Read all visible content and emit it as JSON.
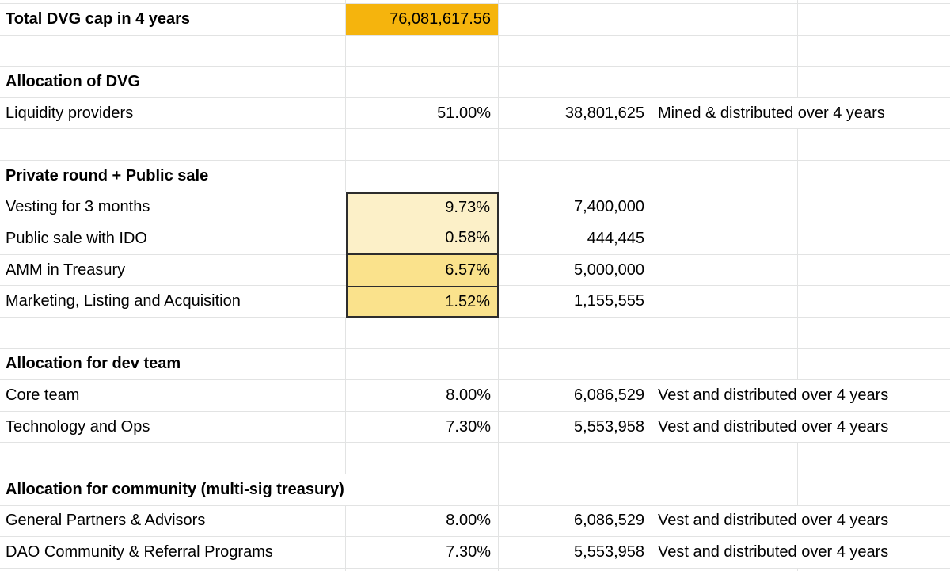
{
  "colors": {
    "highlight_orange": "#F5B40D",
    "highlight_cream": "#FCF0C8",
    "highlight_yellow": "#FAE28C",
    "gridline": "#E2E3E3",
    "box_border": "#2D2D2D",
    "text": "#000000",
    "sheet_bg": "#FFFFFF"
  },
  "sheet": {
    "rows": [
      {
        "label": "Total DVG cap in 4 years",
        "value": "76,081,617.56",
        "highlight": "orange"
      },
      {},
      {
        "label": "Allocation of DVG",
        "header": true
      },
      {
        "label": "Liquidity providers",
        "percent": "51.00%",
        "amount": "38,801,625",
        "note": "Mined & distributed over 4 years"
      },
      {},
      {
        "label": "Private round + Public sale",
        "header": true
      },
      {
        "label": "Vesting for 3 months",
        "percent": "9.73%",
        "amount": "7,400,000",
        "highlight": "cream"
      },
      {
        "label": "Public sale with IDO",
        "percent": "0.58%",
        "amount": "444,445",
        "highlight": "cream"
      },
      {
        "label": "AMM in Treasury",
        "percent": "6.57%",
        "amount": "5,000,000",
        "highlight": "yellow"
      },
      {
        "label": "Marketing, Listing and Acquisition",
        "percent": "1.52%",
        "amount": "1,155,555",
        "highlight": "yellow"
      },
      {},
      {
        "label": "Allocation for dev team",
        "header": true
      },
      {
        "label": "Core team",
        "percent": "8.00%",
        "amount": "6,086,529",
        "note": "Vest and distributed over 4 years"
      },
      {
        "label": "Technology and Ops",
        "percent": "7.30%",
        "amount": "5,553,958",
        "note": "Vest and distributed over 4 years"
      },
      {},
      {
        "label": "Allocation for community (multi-sig treasury)",
        "header": true
      },
      {
        "label": "General Partners & Advisors",
        "percent": "8.00%",
        "amount": "6,086,529",
        "note": "Vest and distributed over 4 years"
      },
      {
        "label": "DAO Community & Referral Programs",
        "percent": "7.30%",
        "amount": "5,553,958",
        "note": "Vest and distributed over 4 years"
      }
    ]
  }
}
